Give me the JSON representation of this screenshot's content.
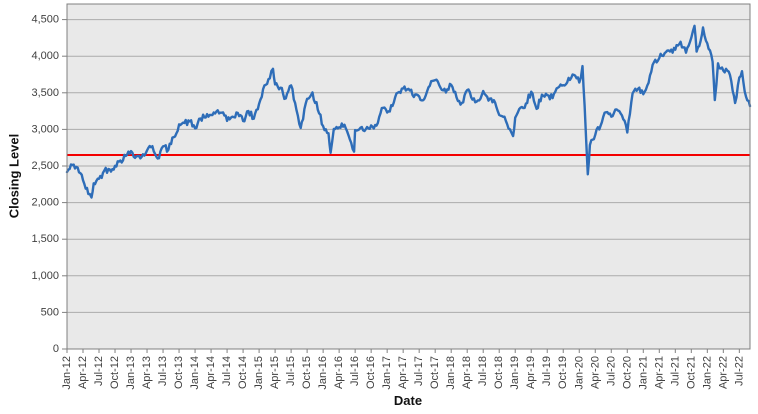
{
  "chart": {
    "x_axis_title": "Date",
    "y_axis_title": "Closing Level"
  },
  "colors": {
    "series_line": "#2e6db8",
    "reference_line": "#f40000",
    "plot_background": "#e9e9e9",
    "gridline": "#ababab",
    "plot_border": "#808080",
    "tick_text": "#3f3f3f"
  },
  "chart_data": {
    "type": "line",
    "title": "",
    "xlabel": "Date",
    "ylabel": "Closing Level",
    "x_tick_labels": [
      "Jan-12",
      "Apr-12",
      "Jul-12",
      "Oct-12",
      "Jan-13",
      "Apr-13",
      "Jul-13",
      "Oct-13",
      "Jan-14",
      "Apr-14",
      "Jul-14",
      "Oct-14",
      "Jan-15",
      "Apr-15",
      "Jul-15",
      "Oct-15",
      "Jan-16",
      "Apr-16",
      "Jul-16",
      "Oct-16",
      "Jan-17",
      "Apr-17",
      "Jul-17",
      "Oct-17",
      "Jan-18",
      "Apr-18",
      "Jul-18",
      "Oct-18",
      "Jan-19",
      "Apr-19",
      "Jul-19",
      "Oct-19",
      "Jan-20",
      "Apr-20",
      "Jul-20",
      "Oct-20",
      "Jan-21",
      "Apr-21",
      "Jul-21",
      "Oct-21",
      "Jan-22",
      "Apr-22",
      "Jul-22"
    ],
    "x_tick_months": [
      0,
      3,
      6,
      9,
      12,
      15,
      18,
      21,
      24,
      27,
      30,
      33,
      36,
      39,
      42,
      45,
      48,
      51,
      54,
      57,
      60,
      63,
      66,
      69,
      72,
      75,
      78,
      81,
      84,
      87,
      90,
      93,
      96,
      99,
      102,
      105,
      108,
      111,
      114,
      117,
      120,
      123,
      126
    ],
    "y_ticks": [
      0,
      500,
      1000,
      1500,
      2000,
      2500,
      3000,
      3500,
      4000,
      4500
    ],
    "y_tick_labels": [
      "0",
      "500",
      "1,000",
      "1,500",
      "2,000",
      "2,500",
      "3,000",
      "3,500",
      "4,000",
      "4,500"
    ],
    "ylim": [
      0,
      4713
    ],
    "x_months_span": 128,
    "grid": "horizontal",
    "legend": "none",
    "reference_line": {
      "value": 2650,
      "color": "#f40000"
    },
    "series": [
      {
        "name": "Closing Level",
        "color": "#2e6db8",
        "x_unit": "months since Jan-2012",
        "points": [
          [
            0,
            2417
          ],
          [
            1,
            2512
          ],
          [
            2,
            2477
          ],
          [
            3,
            2306
          ],
          [
            4,
            2118
          ],
          [
            4.6,
            2069
          ],
          [
            5,
            2264
          ],
          [
            6,
            2325
          ],
          [
            7,
            2440
          ],
          [
            8,
            2454
          ],
          [
            9,
            2503
          ],
          [
            10,
            2575
          ],
          [
            11,
            2636
          ],
          [
            12,
            2703
          ],
          [
            13,
            2633
          ],
          [
            14,
            2624
          ],
          [
            15,
            2712
          ],
          [
            16,
            2770
          ],
          [
            17,
            2603
          ],
          [
            18,
            2768
          ],
          [
            19,
            2721
          ],
          [
            20,
            2893
          ],
          [
            21,
            3068
          ],
          [
            22,
            3087
          ],
          [
            23,
            3109
          ],
          [
            24,
            3014
          ],
          [
            25,
            3149
          ],
          [
            26,
            3162
          ],
          [
            27,
            3198
          ],
          [
            28,
            3245
          ],
          [
            29,
            3228
          ],
          [
            30,
            3116
          ],
          [
            31,
            3173
          ],
          [
            32,
            3226
          ],
          [
            33,
            3113
          ],
          [
            34,
            3251
          ],
          [
            35,
            3146
          ],
          [
            36,
            3351
          ],
          [
            37,
            3599
          ],
          [
            38,
            3697
          ],
          [
            38.6,
            3828
          ],
          [
            39,
            3615
          ],
          [
            40,
            3570
          ],
          [
            41,
            3424
          ],
          [
            42,
            3601
          ],
          [
            43,
            3269
          ],
          [
            43.8,
            3019
          ],
          [
            44,
            3101
          ],
          [
            45,
            3418
          ],
          [
            46,
            3506
          ],
          [
            47,
            3268
          ],
          [
            48,
            3045
          ],
          [
            49,
            2946
          ],
          [
            49.4,
            2680
          ],
          [
            50,
            3005
          ],
          [
            51,
            3028
          ],
          [
            52,
            3063
          ],
          [
            53,
            2865
          ],
          [
            53.8,
            2697
          ],
          [
            54,
            2991
          ],
          [
            55,
            3023
          ],
          [
            56,
            3002
          ],
          [
            57,
            3055
          ],
          [
            58,
            3052
          ],
          [
            59,
            3291
          ],
          [
            60,
            3231
          ],
          [
            61,
            3320
          ],
          [
            62,
            3501
          ],
          [
            63,
            3560
          ],
          [
            64,
            3555
          ],
          [
            65,
            3442
          ],
          [
            66,
            3449
          ],
          [
            67,
            3421
          ],
          [
            68,
            3595
          ],
          [
            69,
            3674
          ],
          [
            70,
            3570
          ],
          [
            71,
            3504
          ],
          [
            72,
            3609
          ],
          [
            73,
            3439
          ],
          [
            74,
            3362
          ],
          [
            75,
            3537
          ],
          [
            76,
            3407
          ],
          [
            77,
            3396
          ],
          [
            78,
            3525
          ],
          [
            79,
            3393
          ],
          [
            80,
            3399
          ],
          [
            81,
            3198
          ],
          [
            82,
            3173
          ],
          [
            83,
            3001
          ],
          [
            83.6,
            2909
          ],
          [
            84,
            3160
          ],
          [
            85,
            3298
          ],
          [
            86,
            3352
          ],
          [
            87,
            3515
          ],
          [
            88,
            3280
          ],
          [
            89,
            3474
          ],
          [
            90,
            3467
          ],
          [
            91,
            3427
          ],
          [
            92,
            3569
          ],
          [
            93,
            3604
          ],
          [
            94,
            3704
          ],
          [
            95,
            3745
          ],
          [
            96,
            3641
          ],
          [
            96.6,
            3865
          ],
          [
            97,
            3329
          ],
          [
            97.6,
            2386
          ],
          [
            98,
            2787
          ],
          [
            99,
            2928
          ],
          [
            100,
            3050
          ],
          [
            101,
            3234
          ],
          [
            102,
            3174
          ],
          [
            103,
            3273
          ],
          [
            104,
            3193
          ],
          [
            105,
            2958
          ],
          [
            106,
            3493
          ],
          [
            107,
            3553
          ],
          [
            108,
            3481
          ],
          [
            109,
            3636
          ],
          [
            110,
            3919
          ],
          [
            111,
            3975
          ],
          [
            112,
            4039
          ],
          [
            113,
            4064
          ],
          [
            114,
            4089
          ],
          [
            115,
            4196
          ],
          [
            116,
            4048
          ],
          [
            117,
            4251
          ],
          [
            117.6,
            4415
          ],
          [
            118,
            4063
          ],
          [
            119,
            4298
          ],
          [
            119.2,
            4392
          ],
          [
            120,
            4175
          ],
          [
            121,
            3924
          ],
          [
            121.4,
            3400
          ],
          [
            122,
            3903
          ],
          [
            123,
            3803
          ],
          [
            124,
            3789
          ],
          [
            125,
            3455
          ],
          [
            125.2,
            3360
          ],
          [
            126,
            3708
          ],
          [
            126.5,
            3795
          ],
          [
            127,
            3517
          ],
          [
            128,
            3318
          ]
        ]
      }
    ]
  }
}
